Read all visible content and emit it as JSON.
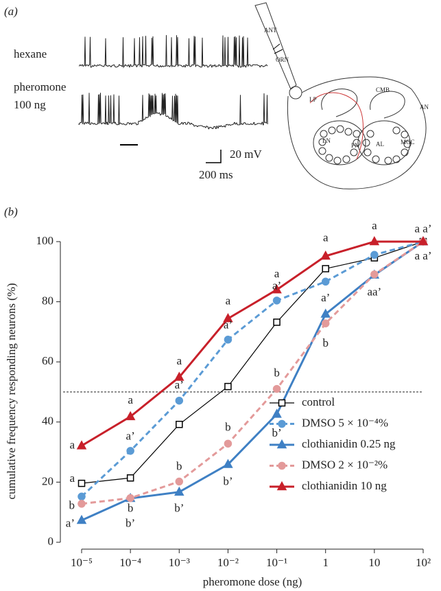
{
  "panel_a": {
    "label": "(a)",
    "trace_labels": [
      "hexane",
      "pheromone",
      "100 ng"
    ],
    "scale_bar": {
      "voltage": "20 mV",
      "time": "200 ms"
    },
    "diagram_labels": [
      "ANT",
      "ORN",
      "LP",
      "CMB",
      "AN",
      "LN",
      "PN",
      "AL",
      "MGC"
    ]
  },
  "chart_data": {
    "type": "line",
    "panel_label": "(b)",
    "xlabel": "pheromone dose (ng)",
    "ylabel": "cumulative frequency responding neurons (%)",
    "categories": [
      "10⁻⁵",
      "10⁻⁴",
      "10⁻³",
      "10⁻²",
      "10⁻¹",
      "1",
      "10",
      "10²"
    ],
    "ylim": [
      0,
      100
    ],
    "yticks": [
      0,
      20,
      40,
      60,
      80,
      100
    ],
    "hline": 50,
    "legend": "lower right",
    "series": [
      {
        "name": "control",
        "color": "#000000",
        "marker": "square",
        "filled": false,
        "linestyle": "solid",
        "values": [
          19.6,
          21.4,
          39.2,
          51.8,
          73.2,
          91.0,
          94.6,
          100
        ]
      },
      {
        "name": "DMSO 5 × 10⁻⁴%",
        "color": "#5b9bd5",
        "marker": "circle",
        "filled": true,
        "linestyle": "dashed",
        "values": [
          15.2,
          30.4,
          47.1,
          67.4,
          80.4,
          86.7,
          95.6,
          100
        ]
      },
      {
        "name": "clothianidin 0.25 ng",
        "color": "#3f80c4",
        "marker": "triangle",
        "filled": true,
        "linestyle": "solid",
        "values": [
          7.3,
          14.6,
          16.7,
          25.9,
          42.6,
          75.9,
          88.9,
          100
        ]
      },
      {
        "name": "DMSO 2 × 10⁻²%",
        "color": "#e39a9a",
        "marker": "circle",
        "filled": true,
        "linestyle": "dashed",
        "values": [
          12.8,
          14.7,
          20.2,
          32.8,
          51.0,
          72.8,
          89.1,
          100
        ]
      },
      {
        "name": "clothianidin 10 ng",
        "color": "#c8202a",
        "marker": "triangle",
        "filled": true,
        "linestyle": "solid",
        "values": [
          32.1,
          41.8,
          54.9,
          74.4,
          84.0,
          95.2,
          100,
          100
        ]
      }
    ],
    "annotations": [
      {
        "text": "a",
        "x": "10⁻⁵",
        "y": 32
      },
      {
        "text": "a",
        "x": "10⁻⁵",
        "y": 21
      },
      {
        "text": "b",
        "x": "10⁻⁵",
        "y": 12
      },
      {
        "text": "a’",
        "x": "10⁻⁵",
        "y": 6
      },
      {
        "text": "a",
        "x": "10⁻⁴",
        "y": 47
      },
      {
        "text": "a’",
        "x": "10⁻⁴",
        "y": 35
      },
      {
        "text": "b",
        "x": "10⁻⁴",
        "y": 11
      },
      {
        "text": "b’",
        "x": "10⁻⁴",
        "y": 6
      },
      {
        "text": "a",
        "x": "10⁻³",
        "y": 60
      },
      {
        "text": "a’",
        "x": "10⁻³",
        "y": 52
      },
      {
        "text": "b",
        "x": "10⁻³",
        "y": 25
      },
      {
        "text": "b’",
        "x": "10⁻³",
        "y": 11
      },
      {
        "text": "a",
        "x": "10⁻²",
        "y": 80
      },
      {
        "text": "a’",
        "x": "10⁻²",
        "y": 72
      },
      {
        "text": "b",
        "x": "10⁻²",
        "y": 38
      },
      {
        "text": "b’",
        "x": "10⁻²",
        "y": 20
      },
      {
        "text": "a",
        "x": "10⁻¹",
        "y": 89
      },
      {
        "text": "a’",
        "x": "10⁻¹",
        "y": 85
      },
      {
        "text": "b",
        "x": "10⁻¹",
        "y": 56
      },
      {
        "text": "b’",
        "x": "10⁻¹",
        "y": 36
      },
      {
        "text": "a",
        "x": "1",
        "y": 101
      },
      {
        "text": "a’",
        "x": "1",
        "y": 81
      },
      {
        "text": "b",
        "x": "1",
        "y": 66
      },
      {
        "text": "a",
        "x": "10",
        "y": 105
      },
      {
        "text": "aa’",
        "x": "10",
        "y": 83
      },
      {
        "text": "a a’",
        "x": "10²",
        "y": 104
      },
      {
        "text": "a a’",
        "x": "10²",
        "y": 95
      }
    ]
  }
}
